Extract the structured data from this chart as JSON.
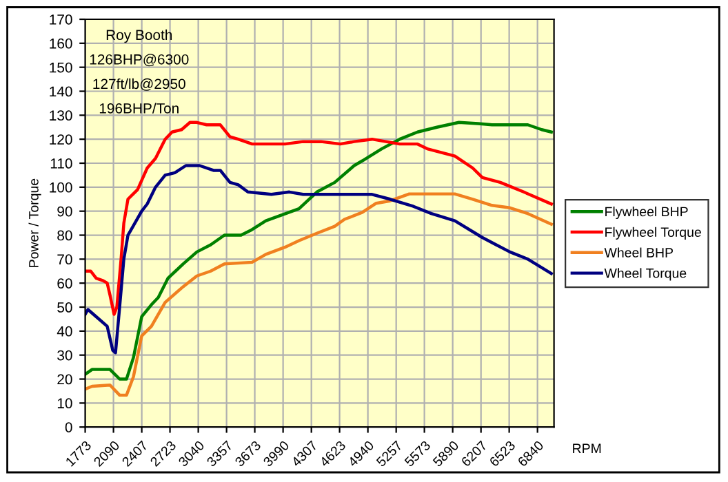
{
  "chart_data": {
    "type": "line",
    "xlabel": "RPM",
    "ylabel": "Power / Torque",
    "annotations": [
      "Roy Booth",
      "126BHP@6300",
      "127ft/lb@2950",
      "196BHP/Ton"
    ],
    "xlim": [
      1773,
      7025
    ],
    "xticks": [
      1773,
      2090,
      2407,
      2723,
      3040,
      3357,
      3673,
      3990,
      4307,
      4623,
      4940,
      5257,
      5573,
      5890,
      6207,
      6523,
      6840
    ],
    "ylim": [
      0,
      170
    ],
    "yticks": [
      0,
      10,
      20,
      30,
      40,
      50,
      60,
      70,
      80,
      90,
      100,
      110,
      120,
      130,
      140,
      150,
      160,
      170
    ],
    "grid": true,
    "legend": "right",
    "marker": "none",
    "line_style": "solid",
    "series": [
      {
        "name": "Flywheel BHP",
        "color": "#008000",
        "x": [
          1773,
          1850,
          2051,
          2159,
          2236,
          2314,
          2406,
          2515,
          2592,
          2700,
          2870,
          3024,
          3179,
          3333,
          3519,
          3627,
          3797,
          4168,
          4369,
          4569,
          4786,
          4878,
          5095,
          5296,
          5496,
          5713,
          5960,
          6176,
          6331,
          6531,
          6732,
          6887,
          6995
        ],
        "values": [
          22,
          24,
          24,
          20,
          20,
          29,
          46,
          51,
          54,
          62,
          68,
          73,
          76,
          80,
          80,
          82,
          86,
          91,
          98,
          102,
          109,
          111,
          116,
          120,
          123,
          125,
          127,
          126.5,
          126,
          126,
          126,
          124,
          123
        ]
      },
      {
        "name": "Flywheel Torque",
        "color": "#ff0000",
        "x": [
          1773,
          1835,
          1897,
          1974,
          2020,
          2051,
          2097,
          2128,
          2175,
          2206,
          2252,
          2360,
          2468,
          2561,
          2669,
          2746,
          2854,
          2947,
          3024,
          3133,
          3287,
          3395,
          3488,
          3643,
          3859,
          4013,
          4214,
          4415,
          4631,
          4786,
          4987,
          5296,
          5496,
          5605,
          5914,
          6114,
          6223,
          6423,
          6686,
          6995
        ],
        "values": [
          65,
          65,
          62,
          61,
          60,
          55,
          47,
          50,
          70,
          85,
          95,
          99,
          108,
          112,
          120,
          123,
          124,
          127,
          127,
          126,
          126,
          121,
          120,
          118,
          118,
          118,
          119,
          119,
          118,
          119,
          120,
          118,
          118,
          116,
          113,
          108,
          104,
          102,
          98,
          93
        ]
      },
      {
        "name": "Wheel BHP",
        "color": "#f08020",
        "x": [
          1773,
          1850,
          2051,
          2159,
          2236,
          2314,
          2406,
          2515,
          2669,
          2870,
          3024,
          3179,
          3333,
          3643,
          3797,
          4013,
          4168,
          4369,
          4569,
          4678,
          4878,
          5033,
          5188,
          5404,
          5914,
          6114,
          6331,
          6531,
          6732,
          6995
        ],
        "values": [
          15.8,
          17,
          17.5,
          13.3,
          13.3,
          21,
          38,
          42,
          52,
          58.5,
          63,
          65,
          68,
          68.7,
          72,
          75,
          77.7,
          80.8,
          83.7,
          86.6,
          89.5,
          93.3,
          94.3,
          97.2,
          97.2,
          95,
          92.4,
          91.4,
          89,
          84.6
        ]
      },
      {
        "name": "Wheel Torque",
        "color": "#000080",
        "x": [
          1773,
          1804,
          1897,
          2020,
          2082,
          2113,
          2159,
          2206,
          2252,
          2314,
          2406,
          2468,
          2561,
          2669,
          2777,
          2901,
          3055,
          3210,
          3287,
          3395,
          3488,
          3596,
          3859,
          4060,
          4214,
          4523,
          4987,
          5188,
          5450,
          5651,
          5914,
          6223,
          6377,
          6531,
          6732,
          6995
        ],
        "values": [
          47,
          49,
          46,
          42,
          32,
          31,
          50,
          70,
          80,
          84,
          90,
          93,
          100,
          105,
          106,
          109,
          109,
          107,
          107,
          102,
          101,
          98,
          97,
          98,
          97,
          97,
          97,
          95,
          92,
          89,
          86,
          79,
          76,
          73,
          70,
          64
        ]
      }
    ]
  }
}
